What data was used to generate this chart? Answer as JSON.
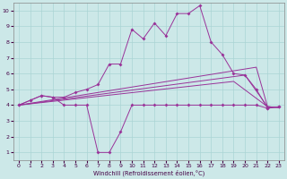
{
  "xlabel": "Windchill (Refroidissement éolien,°C)",
  "bg_color": "#cce8e8",
  "grid_color": "#aad4d4",
  "line_color": "#993399",
  "xlim": [
    -0.5,
    23.5
  ],
  "ylim": [
    0.5,
    10.5
  ],
  "xticks": [
    0,
    1,
    2,
    3,
    4,
    5,
    6,
    7,
    8,
    9,
    10,
    11,
    12,
    13,
    14,
    15,
    16,
    17,
    18,
    19,
    20,
    21,
    22,
    23
  ],
  "yticks": [
    1,
    2,
    3,
    4,
    5,
    6,
    7,
    8,
    9,
    10
  ],
  "main_x": [
    0,
    1,
    2,
    3,
    4,
    5,
    6,
    7,
    8,
    9,
    10,
    11,
    12,
    13,
    14,
    15,
    16,
    17,
    18,
    19,
    20,
    21,
    22,
    23
  ],
  "main_y": [
    4.0,
    4.3,
    4.6,
    4.5,
    4.5,
    4.8,
    5.0,
    5.3,
    6.6,
    6.6,
    8.8,
    8.2,
    9.2,
    8.4,
    9.8,
    9.8,
    10.3,
    8.0,
    7.2,
    6.0,
    5.9,
    5.0,
    3.8,
    3.9
  ],
  "dip_x": [
    0,
    1,
    2,
    3,
    4,
    5,
    6,
    7,
    8,
    9,
    10,
    11,
    12,
    13,
    14,
    15,
    16,
    17,
    18,
    19,
    20,
    21,
    22,
    23
  ],
  "dip_y": [
    4.0,
    4.3,
    4.6,
    4.5,
    4.0,
    4.0,
    4.0,
    1.0,
    1.0,
    2.3,
    4.0,
    4.0,
    4.0,
    4.0,
    4.0,
    4.0,
    4.0,
    4.0,
    4.0,
    4.0,
    4.0,
    4.0,
    3.8,
    3.9
  ],
  "trend1_x": [
    0,
    21,
    22,
    23
  ],
  "trend1_y": [
    4.0,
    6.4,
    3.9,
    3.85
  ],
  "trend2_x": [
    0,
    20,
    22,
    23
  ],
  "trend2_y": [
    4.0,
    5.9,
    3.9,
    3.85
  ],
  "trend3_x": [
    0,
    19,
    22,
    23
  ],
  "trend3_y": [
    4.0,
    5.5,
    3.9,
    3.85
  ]
}
